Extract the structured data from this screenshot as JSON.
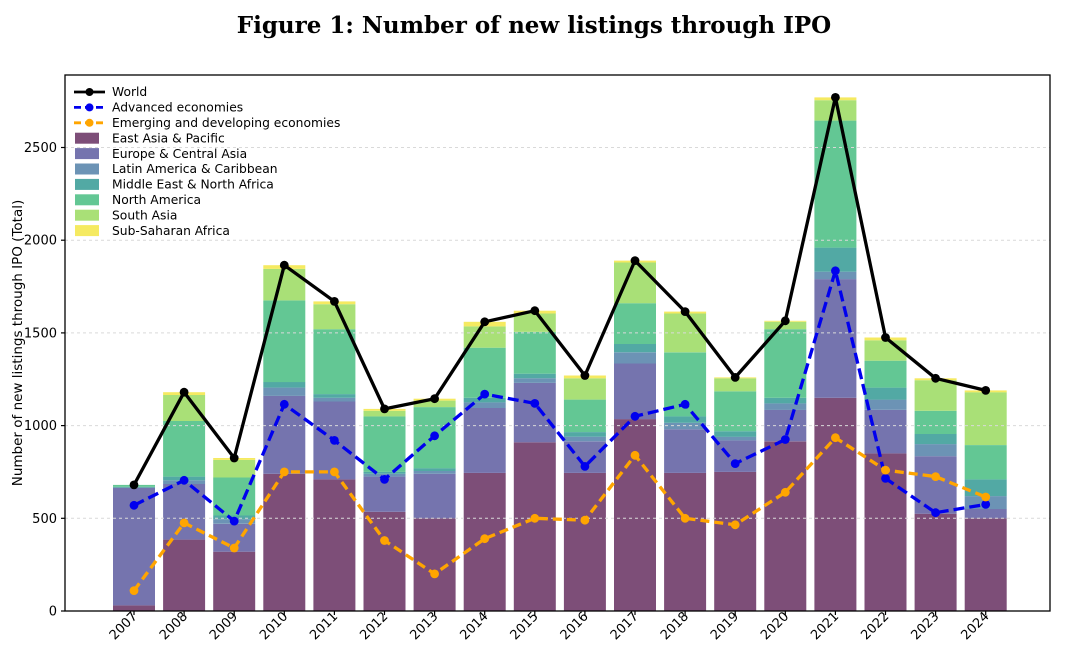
{
  "figure": {
    "title": "Figure 1: Number of new listings through IPO"
  },
  "chart_data": {
    "type": "bar",
    "subtype": "stacked-bars-with-overlaid-lines",
    "title": "Figure 1: Number of new listings through IPO",
    "xlabel": "",
    "ylabel": "Number of new listings through IPO (Total)",
    "categories": [
      "2007",
      "2008",
      "2009",
      "2010",
      "2011",
      "2012",
      "2013",
      "2014",
      "2015",
      "2016",
      "2017",
      "2018",
      "2019",
      "2020",
      "2021",
      "2022",
      "2023",
      "2024"
    ],
    "yticks": [
      0,
      500,
      1000,
      1500,
      2000,
      2500
    ],
    "ylim": [
      0,
      2890
    ],
    "grid": true,
    "legend_position": "upper-left",
    "stack_series": [
      {
        "name": "East Asia & Pacific",
        "color": "#7d4e78",
        "values": [
          30,
          385,
          320,
          740,
          710,
          535,
          500,
          745,
          910,
          745,
          1035,
          745,
          750,
          915,
          1150,
          850,
          525,
          500
        ]
      },
      {
        "name": "Europe & Central Asia",
        "color": "#7574ae",
        "values": [
          635,
          300,
          150,
          420,
          420,
          190,
          240,
          350,
          320,
          170,
          300,
          235,
          170,
          170,
          640,
          235,
          310,
          50
        ]
      },
      {
        "name": "Latin America & Caribbean",
        "color": "#6c93b5",
        "values": [
          0,
          20,
          25,
          45,
          20,
          15,
          15,
          30,
          25,
          25,
          60,
          35,
          20,
          35,
          40,
          55,
          65,
          70
        ]
      },
      {
        "name": "Middle East & North Africa",
        "color": "#52a9a4",
        "values": [
          5,
          20,
          20,
          30,
          20,
          10,
          15,
          25,
          25,
          25,
          45,
          35,
          30,
          30,
          130,
          65,
          55,
          90
        ]
      },
      {
        "name": "North America",
        "color": "#63c794",
        "values": [
          10,
          300,
          205,
          440,
          350,
          300,
          330,
          270,
          225,
          175,
          220,
          345,
          215,
          370,
          685,
          145,
          125,
          185
        ]
      },
      {
        "name": "South Asia",
        "color": "#a9e077",
        "values": [
          0,
          140,
          95,
          170,
          135,
          30,
          35,
          115,
          100,
          115,
          220,
          210,
          70,
          40,
          110,
          110,
          165,
          285
        ]
      },
      {
        "name": "Sub-Saharan Africa",
        "color": "#f5ea61",
        "values": [
          0,
          15,
          10,
          20,
          15,
          10,
          10,
          25,
          15,
          15,
          10,
          10,
          5,
          5,
          15,
          15,
          10,
          10
        ]
      }
    ],
    "line_series": [
      {
        "name": "World",
        "color": "#000000",
        "dash": "solid",
        "values": [
          680,
          1180,
          825,
          1865,
          1670,
          1090,
          1145,
          1560,
          1620,
          1270,
          1890,
          1615,
          1260,
          1565,
          2770,
          1475,
          1255,
          1190
        ]
      },
      {
        "name": "Advanced economies",
        "color": "#0000ee",
        "dash": "dashed",
        "values": [
          570,
          705,
          485,
          1115,
          920,
          710,
          945,
          1170,
          1120,
          780,
          1050,
          1115,
          795,
          925,
          1835,
          715,
          530,
          575
        ]
      },
      {
        "name": "Emerging and developing economies",
        "color": "#ffa500",
        "dash": "dashed",
        "values": [
          110,
          475,
          340,
          750,
          750,
          380,
          200,
          390,
          500,
          490,
          840,
          500,
          465,
          640,
          935,
          760,
          725,
          615
        ]
      }
    ]
  }
}
